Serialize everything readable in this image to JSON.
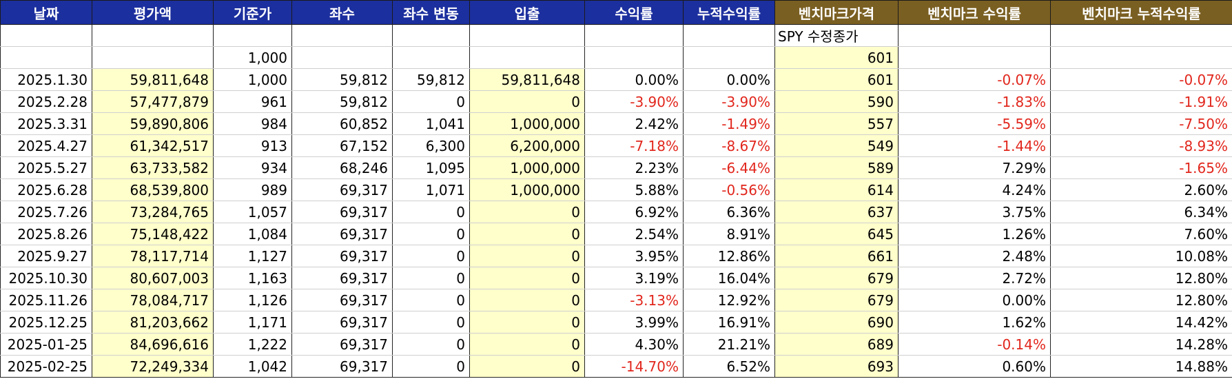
{
  "headers": [
    "날짜",
    "평가액",
    "기준가",
    "좌수",
    "좌수 변동",
    "입출",
    "수익률",
    "누적수익률",
    "벤치마크가격",
    "벤치마크 수익률",
    "벤치마크 누적수익률"
  ],
  "colors": {
    "header_blue": "#1c2f9e",
    "header_gold": "#7a5f22",
    "highlight_yellow": "#ffffcc",
    "negative_red": "#e1261c"
  },
  "note_row": {
    "benchmark_note": "SPY 수정종가"
  },
  "base_row": {
    "base_nav": "1,000",
    "base_benchmark": "601"
  },
  "rows": [
    {
      "date": "2025.1.30",
      "value": "59,811,648",
      "nav": "1,000",
      "units": "59,812",
      "unit_change": "59,812",
      "flow": "59,811,648",
      "ret": "0.00%",
      "cum_ret": "0.00%",
      "bm_price": "601",
      "bm_ret": "-0.07%",
      "bm_cum": "-0.07%"
    },
    {
      "date": "2025.2.28",
      "value": "57,477,879",
      "nav": "961",
      "units": "59,812",
      "unit_change": "0",
      "flow": "0",
      "ret": "-3.90%",
      "cum_ret": "-3.90%",
      "bm_price": "590",
      "bm_ret": "-1.83%",
      "bm_cum": "-1.91%"
    },
    {
      "date": "2025.3.31",
      "value": "59,890,806",
      "nav": "984",
      "units": "60,852",
      "unit_change": "1,041",
      "flow": "1,000,000",
      "ret": "2.42%",
      "cum_ret": "-1.49%",
      "bm_price": "557",
      "bm_ret": "-5.59%",
      "bm_cum": "-7.50%"
    },
    {
      "date": "2025.4.27",
      "value": "61,342,517",
      "nav": "913",
      "units": "67,152",
      "unit_change": "6,300",
      "flow": "6,200,000",
      "ret": "-7.18%",
      "cum_ret": "-8.67%",
      "bm_price": "549",
      "bm_ret": "-1.44%",
      "bm_cum": "-8.93%"
    },
    {
      "date": "2025.5.27",
      "value": "63,733,582",
      "nav": "934",
      "units": "68,246",
      "unit_change": "1,095",
      "flow": "1,000,000",
      "ret": "2.23%",
      "cum_ret": "-6.44%",
      "bm_price": "589",
      "bm_ret": "7.29%",
      "bm_cum": "-1.65%"
    },
    {
      "date": "2025.6.28",
      "value": "68,539,800",
      "nav": "989",
      "units": "69,317",
      "unit_change": "1,071",
      "flow": "1,000,000",
      "ret": "5.88%",
      "cum_ret": "-0.56%",
      "bm_price": "614",
      "bm_ret": "4.24%",
      "bm_cum": "2.60%"
    },
    {
      "date": "2025.7.26",
      "value": "73,284,765",
      "nav": "1,057",
      "units": "69,317",
      "unit_change": "0",
      "flow": "0",
      "ret": "6.92%",
      "cum_ret": "6.36%",
      "bm_price": "637",
      "bm_ret": "3.75%",
      "bm_cum": "6.34%"
    },
    {
      "date": "2025.8.26",
      "value": "75,148,422",
      "nav": "1,084",
      "units": "69,317",
      "unit_change": "0",
      "flow": "0",
      "ret": "2.54%",
      "cum_ret": "8.91%",
      "bm_price": "645",
      "bm_ret": "1.26%",
      "bm_cum": "7.60%"
    },
    {
      "date": "2025.9.27",
      "value": "78,117,714",
      "nav": "1,127",
      "units": "69,317",
      "unit_change": "0",
      "flow": "0",
      "ret": "3.95%",
      "cum_ret": "12.86%",
      "bm_price": "661",
      "bm_ret": "2.48%",
      "bm_cum": "10.08%"
    },
    {
      "date": "2025.10.30",
      "value": "80,607,003",
      "nav": "1,163",
      "units": "69,317",
      "unit_change": "0",
      "flow": "0",
      "ret": "3.19%",
      "cum_ret": "16.04%",
      "bm_price": "679",
      "bm_ret": "2.72%",
      "bm_cum": "12.80%"
    },
    {
      "date": "2025.11.26",
      "value": "78,084,717",
      "nav": "1,126",
      "units": "69,317",
      "unit_change": "0",
      "flow": "0",
      "ret": "-3.13%",
      "cum_ret": "12.92%",
      "bm_price": "679",
      "bm_ret": "0.00%",
      "bm_cum": "12.80%"
    },
    {
      "date": "2025.12.25",
      "value": "81,203,662",
      "nav": "1,171",
      "units": "69,317",
      "unit_change": "0",
      "flow": "0",
      "ret": "3.99%",
      "cum_ret": "16.91%",
      "bm_price": "690",
      "bm_ret": "1.62%",
      "bm_cum": "14.42%"
    },
    {
      "date": "2025-01-25",
      "value": "84,696,616",
      "nav": "1,222",
      "units": "69,317",
      "unit_change": "0",
      "flow": "0",
      "ret": "4.30%",
      "cum_ret": "21.21%",
      "bm_price": "689",
      "bm_ret": "-0.14%",
      "bm_cum": "14.28%"
    },
    {
      "date": "2025-02-25",
      "value": "72,249,334",
      "nav": "1,042",
      "units": "69,317",
      "unit_change": "0",
      "flow": "0",
      "ret": "-14.70%",
      "cum_ret": "6.52%",
      "bm_price": "693",
      "bm_ret": "0.60%",
      "bm_cum": "14.88%"
    }
  ]
}
